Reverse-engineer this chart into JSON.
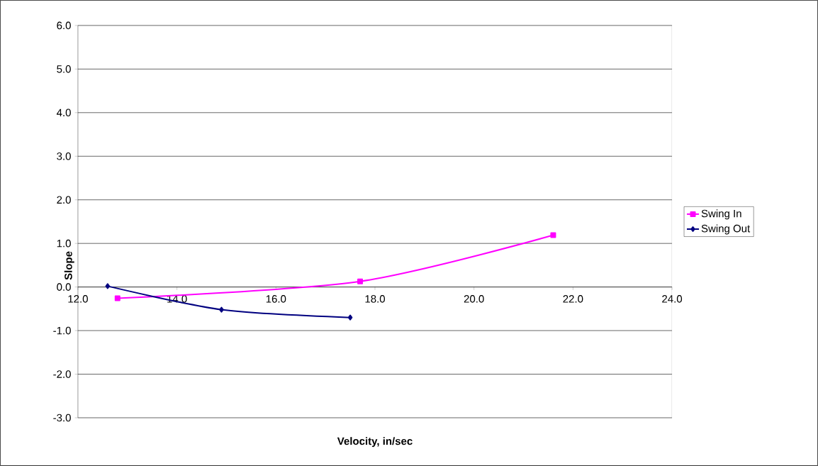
{
  "chart_data": {
    "type": "line",
    "xlabel": "Velocity, in/sec",
    "ylabel": "Slope",
    "xlim": [
      12,
      24
    ],
    "ylim": [
      -3,
      6
    ],
    "xticks": [
      {
        "value": 12,
        "label": "12.0"
      },
      {
        "value": 14,
        "label": "14.0"
      },
      {
        "value": 16,
        "label": "16.0"
      },
      {
        "value": 18,
        "label": "18.0"
      },
      {
        "value": 20,
        "label": "20.0"
      },
      {
        "value": 22,
        "label": "22.0"
      },
      {
        "value": 24,
        "label": "24.0"
      }
    ],
    "yticks": [
      {
        "value": -3,
        "label": "-3.0"
      },
      {
        "value": -2,
        "label": "-2.0"
      },
      {
        "value": -1,
        "label": "-1.0"
      },
      {
        "value": 0,
        "label": "0.0"
      },
      {
        "value": 1,
        "label": "1.0"
      },
      {
        "value": 2,
        "label": "2.0"
      },
      {
        "value": 3,
        "label": "3.0"
      },
      {
        "value": 4,
        "label": "4.0"
      },
      {
        "value": 5,
        "label": "5.0"
      },
      {
        "value": 6,
        "label": "6.0"
      }
    ],
    "grid": "y",
    "legend": "right",
    "series": [
      {
        "name": "Swing In",
        "color": "#ff00ff",
        "marker": "square",
        "x": [
          12.8,
          17.7,
          21.6
        ],
        "values": [
          -0.26,
          0.13,
          1.19
        ]
      },
      {
        "name": "Swing Out",
        "color": "#000080",
        "marker": "diamond",
        "x": [
          12.6,
          14.9,
          17.5
        ],
        "values": [
          0.02,
          -0.52,
          -0.7
        ]
      }
    ]
  }
}
